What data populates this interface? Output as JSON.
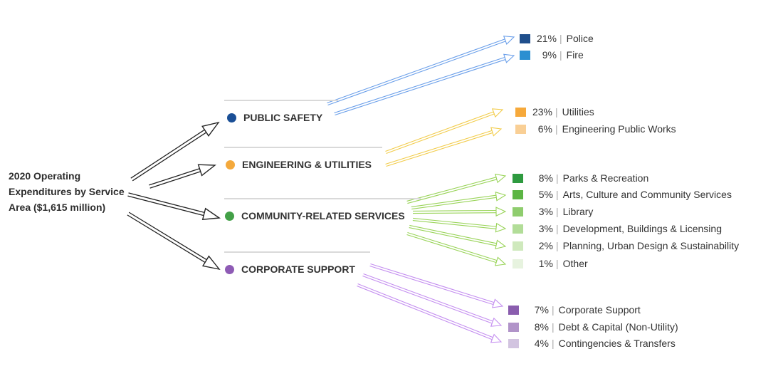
{
  "root": {
    "lines": [
      "2020 Operating",
      "Expenditures by Service",
      "Area ($1,615 million)"
    ]
  },
  "categories": [
    {
      "id": "public-safety",
      "label": "PUBLIC SAFETY",
      "color": "#1a4f96",
      "arrow_color": "#6a9fea",
      "items": [
        {
          "pct": "21%",
          "label": "Police",
          "color": "#1f4f8c"
        },
        {
          "pct": "9%",
          "label": "Fire",
          "color": "#2b8fd1"
        }
      ]
    },
    {
      "id": "engineering-utilities",
      "label": "ENGINEERING & UTILITIES",
      "color": "#f4a93c",
      "arrow_color": "#f2cc4a",
      "items": [
        {
          "pct": "23%",
          "label": "Utilities",
          "color": "#f6a93b"
        },
        {
          "pct": "6%",
          "label": "Engineering Public Works",
          "color": "#f9cf95"
        }
      ]
    },
    {
      "id": "community-related-services",
      "label": "COMMUNITY-RELATED SERVICES",
      "color": "#43a047",
      "arrow_color": "#9ad45a",
      "items": [
        {
          "pct": "8%",
          "label": "Parks & Recreation",
          "color": "#2e9a3f"
        },
        {
          "pct": "5%",
          "label": "Arts, Culture and Community Services",
          "color": "#5cb544"
        },
        {
          "pct": "3%",
          "label": "Library",
          "color": "#8fcd6e"
        },
        {
          "pct": "3%",
          "label": "Development, Buildings & Licensing",
          "color": "#b2dd98"
        },
        {
          "pct": "2%",
          "label": "Planning, Urban Design & Sustainability",
          "color": "#cfe9bd"
        },
        {
          "pct": "1%",
          "label": "Other",
          "color": "#e7f3df"
        }
      ]
    },
    {
      "id": "corporate-support",
      "label": "CORPORATE SUPPORT",
      "color": "#8e5bb5",
      "arrow_color": "#c48ef0",
      "items": [
        {
          "pct": "7%",
          "label": "Corporate Support",
          "color": "#8a5dae"
        },
        {
          "pct": "8%",
          "label": "Debt & Capital (Non-Utility)",
          "color": "#b194c9"
        },
        {
          "pct": "4%",
          "label": "Contingencies & Transfers",
          "color": "#d2c4e0"
        }
      ]
    }
  ],
  "palette": {
    "root_arrow": "#222222",
    "divider": "#d9d9d9"
  }
}
